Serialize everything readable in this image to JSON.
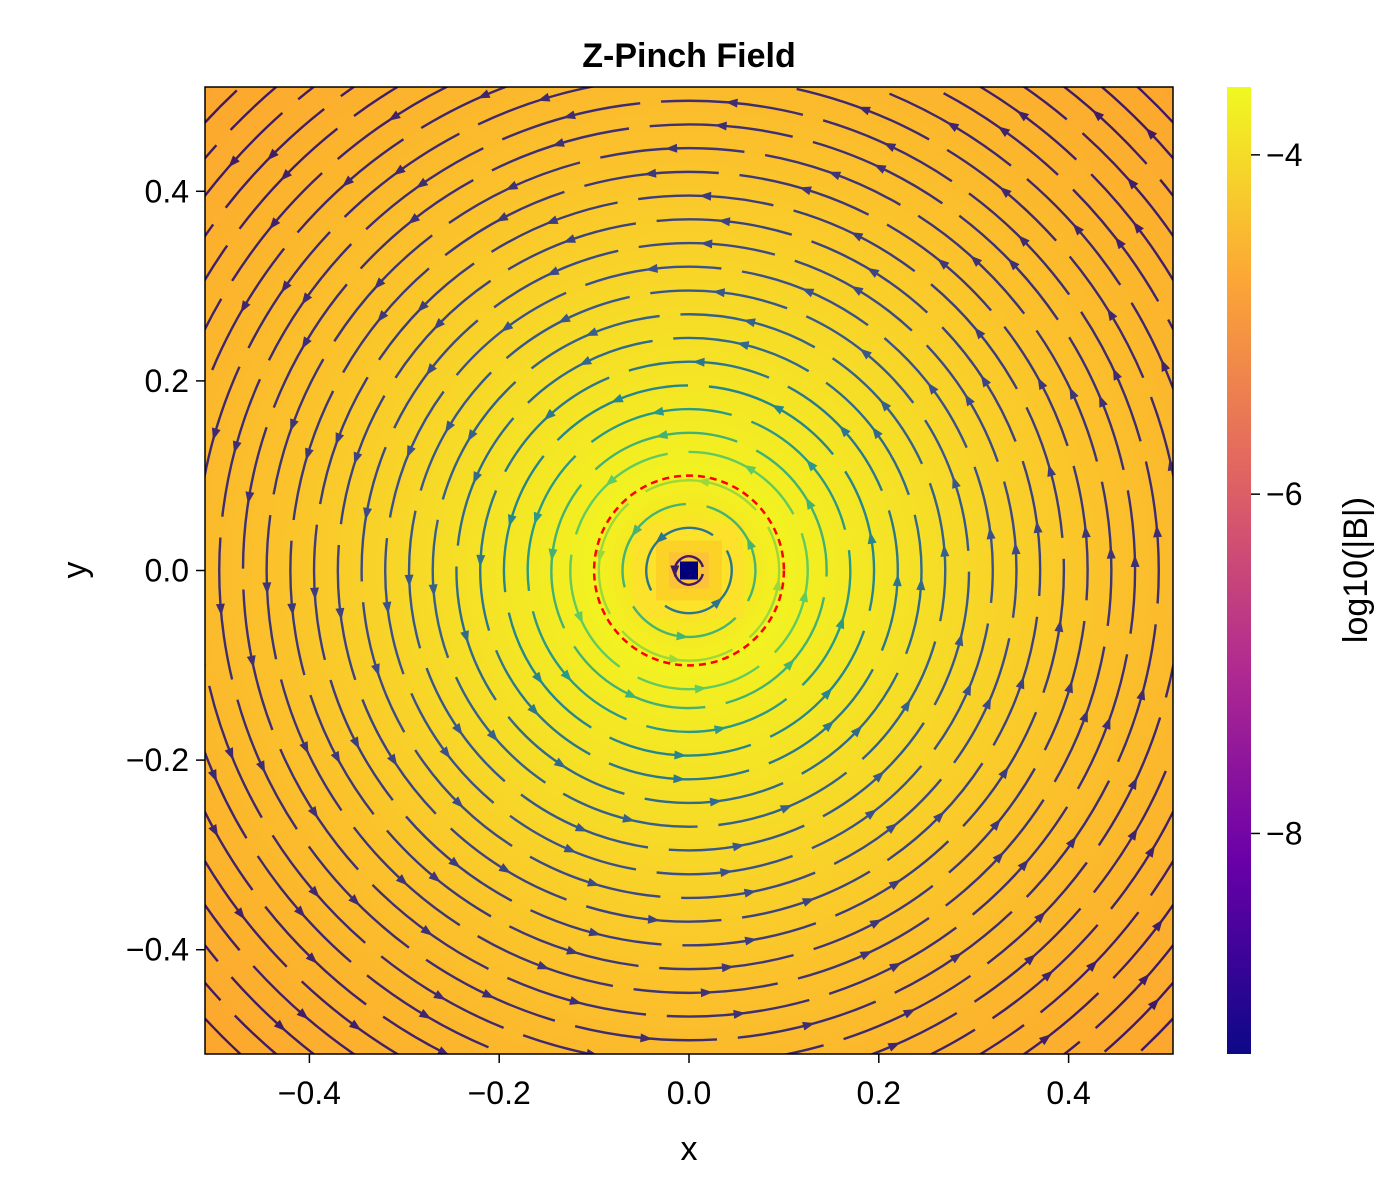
{
  "chart_data": {
    "type": "streamplot",
    "title": "Z-Pinch Field",
    "xlabel": "x",
    "ylabel": "y",
    "xlim": [
      -0.51,
      0.51
    ],
    "ylim": [
      -0.51,
      0.51
    ],
    "x_ticks": [
      -0.4,
      -0.2,
      0.0,
      0.2,
      0.4
    ],
    "x_tick_labels": [
      "−0.4",
      "−0.2",
      "0.0",
      "0.2",
      "0.4"
    ],
    "y_ticks": [
      -0.4,
      -0.2,
      0.0,
      0.2,
      0.4
    ],
    "y_tick_labels": [
      "−0.4",
      "−0.2",
      "0.0",
      "0.2",
      "0.4"
    ],
    "colorbar": {
      "label": "log10(|B|)",
      "colormap": "plasma",
      "range": [
        -9.3,
        -3.6
      ],
      "ticks": [
        -8,
        -6,
        -4
      ],
      "tick_labels": [
        "−8",
        "−6",
        "−4"
      ]
    },
    "field": {
      "description_of_pattern": "azimuthal field around central current",
      "rotation": "counter-clockwise",
      "current_radius": 0.1,
      "log10_B_max": -3.8,
      "log10_B_corner": -4.5,
      "log10_B_center": -9.3
    },
    "annotations": [
      {
        "type": "dashed-circle",
        "center": [
          0,
          0
        ],
        "radius": 0.1,
        "color": "#ff0000"
      },
      {
        "type": "square-marker",
        "center": [
          0,
          0
        ],
        "color": "#00007a"
      }
    ],
    "streamline_radii": [
      0.015,
      0.045,
      0.07,
      0.095,
      0.125,
      0.145,
      0.17,
      0.195,
      0.22,
      0.245,
      0.27,
      0.295,
      0.32,
      0.345,
      0.37,
      0.395,
      0.42,
      0.445,
      0.47,
      0.495,
      0.52,
      0.545,
      0.57,
      0.595,
      0.62,
      0.645,
      0.67,
      0.695
    ]
  }
}
